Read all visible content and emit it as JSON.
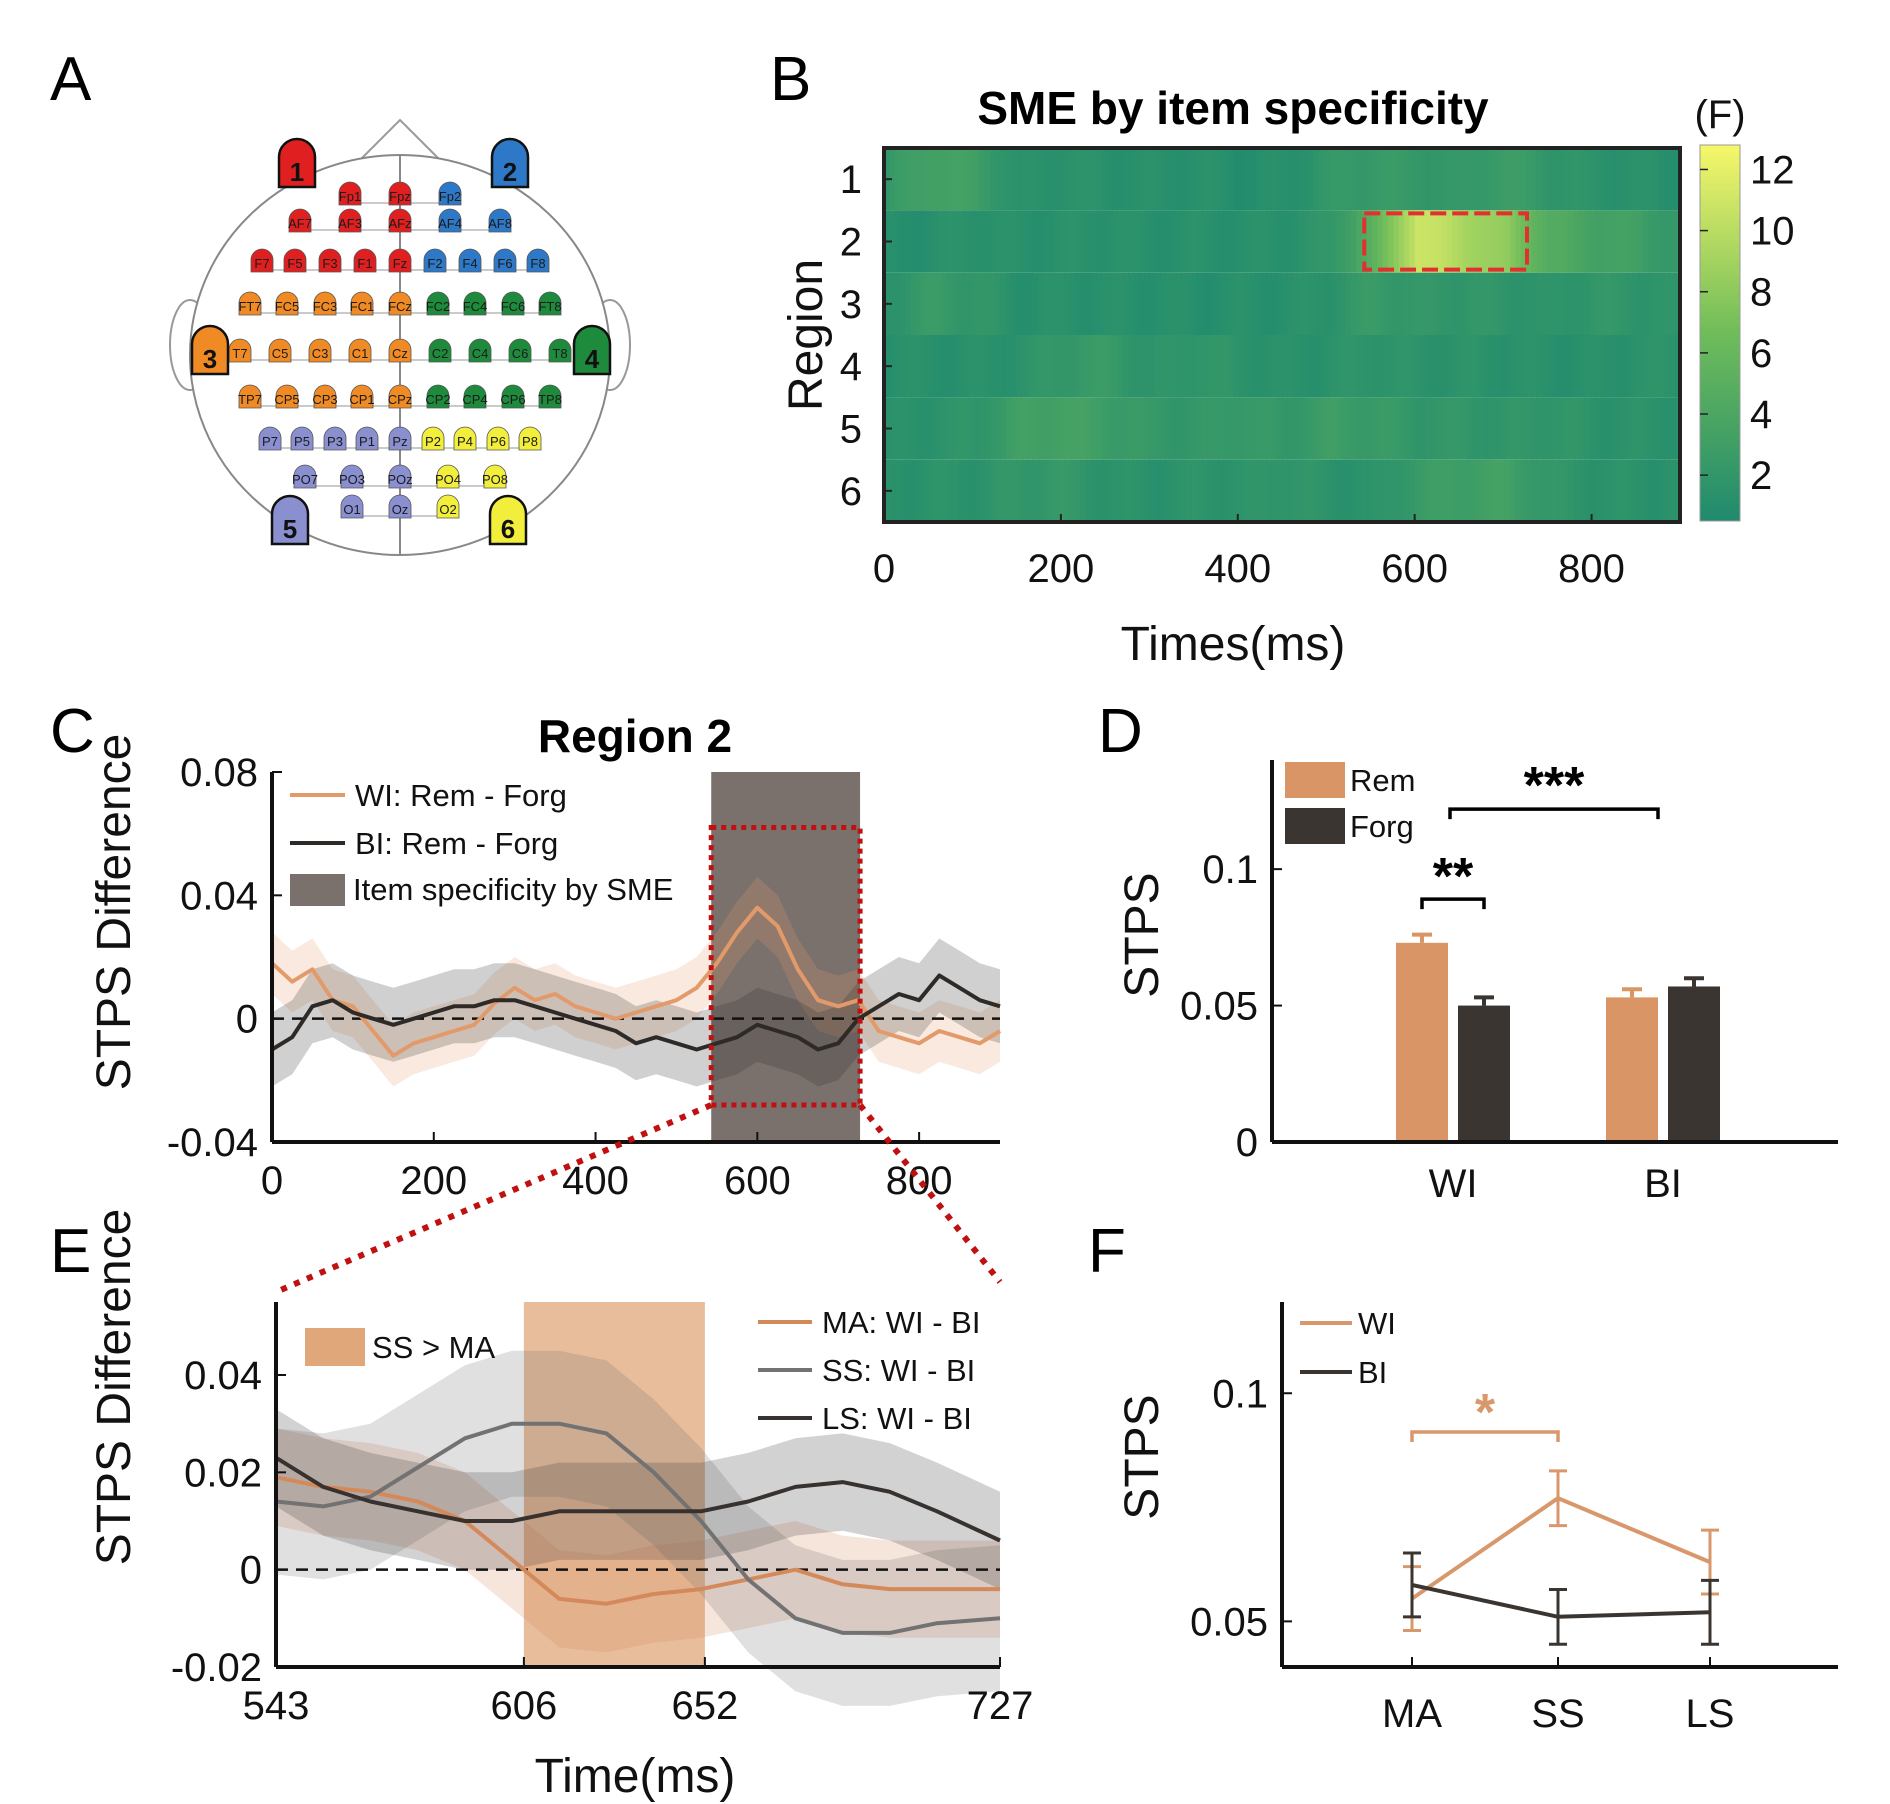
{
  "panels": {
    "A": {
      "label": "A",
      "region_numbers": [
        "1",
        "2",
        "3",
        "4",
        "5",
        "6"
      ],
      "region_colors": {
        "1": "#e02020",
        "2": "#2e78c8",
        "3": "#f08a24",
        "4": "#1e8a3c",
        "5": "#8a8fd0",
        "6": "#f2ee3c"
      },
      "electrodes": [
        {
          "name": "Fp1",
          "region": "1"
        },
        {
          "name": "Fpz",
          "region": "1"
        },
        {
          "name": "Fp2",
          "region": "2"
        },
        {
          "name": "AF7",
          "region": "1"
        },
        {
          "name": "AF3",
          "region": "1"
        },
        {
          "name": "AFz",
          "region": "1"
        },
        {
          "name": "AF4",
          "region": "2"
        },
        {
          "name": "AF8",
          "region": "2"
        },
        {
          "name": "F7",
          "region": "1"
        },
        {
          "name": "F5",
          "region": "1"
        },
        {
          "name": "F3",
          "region": "1"
        },
        {
          "name": "F1",
          "region": "1"
        },
        {
          "name": "Fz",
          "region": "1"
        },
        {
          "name": "F2",
          "region": "2"
        },
        {
          "name": "F4",
          "region": "2"
        },
        {
          "name": "F6",
          "region": "2"
        },
        {
          "name": "F8",
          "region": "2"
        },
        {
          "name": "FT7",
          "region": "3"
        },
        {
          "name": "FC5",
          "region": "3"
        },
        {
          "name": "FC3",
          "region": "3"
        },
        {
          "name": "FC1",
          "region": "3"
        },
        {
          "name": "FCz",
          "region": "3"
        },
        {
          "name": "FC2",
          "region": "4"
        },
        {
          "name": "FC4",
          "region": "4"
        },
        {
          "name": "FC6",
          "region": "4"
        },
        {
          "name": "FT8",
          "region": "4"
        },
        {
          "name": "T7",
          "region": "3"
        },
        {
          "name": "C5",
          "region": "3"
        },
        {
          "name": "C3",
          "region": "3"
        },
        {
          "name": "C1",
          "region": "3"
        },
        {
          "name": "Cz",
          "region": "3"
        },
        {
          "name": "C2",
          "region": "4"
        },
        {
          "name": "C4",
          "region": "4"
        },
        {
          "name": "C6",
          "region": "4"
        },
        {
          "name": "T8",
          "region": "4"
        },
        {
          "name": "TP7",
          "region": "3"
        },
        {
          "name": "CP5",
          "region": "3"
        },
        {
          "name": "CP3",
          "region": "3"
        },
        {
          "name": "CP1",
          "region": "3"
        },
        {
          "name": "CPz",
          "region": "3"
        },
        {
          "name": "CP2",
          "region": "4"
        },
        {
          "name": "CP4",
          "region": "4"
        },
        {
          "name": "CP6",
          "region": "4"
        },
        {
          "name": "TP8",
          "region": "4"
        },
        {
          "name": "P7",
          "region": "5"
        },
        {
          "name": "P5",
          "region": "5"
        },
        {
          "name": "P3",
          "region": "5"
        },
        {
          "name": "P1",
          "region": "5"
        },
        {
          "name": "Pz",
          "region": "5"
        },
        {
          "name": "P2",
          "region": "6"
        },
        {
          "name": "P4",
          "region": "6"
        },
        {
          "name": "P6",
          "region": "6"
        },
        {
          "name": "P8",
          "region": "6"
        },
        {
          "name": "PO7",
          "region": "5"
        },
        {
          "name": "PO3",
          "region": "5"
        },
        {
          "name": "POz",
          "region": "5"
        },
        {
          "name": "PO4",
          "region": "6"
        },
        {
          "name": "PO8",
          "region": "6"
        },
        {
          "name": "O1",
          "region": "5"
        },
        {
          "name": "Oz",
          "region": "5"
        },
        {
          "name": "O2",
          "region": "6"
        }
      ]
    },
    "B": {
      "label": "B"
    },
    "C": {
      "label": "C"
    },
    "D": {
      "label": "D"
    },
    "E": {
      "label": "E"
    },
    "F": {
      "label": "F"
    }
  },
  "chart_data": [
    {
      "panel": "B",
      "type": "heatmap",
      "title": "SME by item specificity",
      "xlabel": "Times(ms)",
      "ylabel": "Region",
      "xlim": [
        0,
        900
      ],
      "xticks": [
        0,
        200,
        400,
        600,
        800
      ],
      "rows": [
        "1",
        "2",
        "3",
        "4",
        "5",
        "6"
      ],
      "colorbar": {
        "label": "(F)",
        "ticks": [
          2,
          4,
          6,
          8,
          10,
          12
        ],
        "range": [
          0.5,
          12.8
        ],
        "colors": [
          "#1f8a6e",
          "#6fbc5a",
          "#f7f76a"
        ]
      },
      "highlight": {
        "region": "2",
        "x_range": [
          543,
          727
        ],
        "color": "#e03030"
      },
      "time_bins_ms": [
        0,
        50,
        100,
        150,
        200,
        250,
        300,
        350,
        400,
        450,
        500,
        550,
        600,
        650,
        700,
        750,
        800,
        850,
        900
      ],
      "f_values": [
        [
          2.0,
          3.5,
          3.0,
          1.2,
          1.5,
          1.3,
          1.2,
          1.3,
          1.0,
          1.1,
          2.0,
          2.5,
          2.2,
          2.0,
          2.8,
          2.0,
          1.5,
          1.3,
          1.2
        ],
        [
          1.0,
          1.2,
          1.5,
          1.2,
          1.3,
          1.4,
          1.2,
          1.3,
          1.2,
          1.3,
          1.8,
          5.0,
          11.0,
          9.5,
          8.0,
          4.5,
          3.5,
          3.0,
          2.0
        ],
        [
          1.5,
          2.5,
          2.0,
          1.2,
          1.3,
          1.2,
          1.2,
          1.1,
          1.2,
          1.2,
          1.5,
          2.5,
          2.0,
          2.0,
          1.8,
          1.5,
          2.0,
          1.8,
          1.5
        ],
        [
          1.2,
          1.3,
          1.2,
          1.5,
          2.2,
          2.5,
          1.5,
          2.0,
          1.6,
          1.2,
          1.5,
          1.8,
          1.5,
          1.5,
          1.4,
          1.3,
          1.2,
          1.5,
          1.6
        ],
        [
          1.2,
          1.5,
          1.8,
          3.0,
          3.5,
          2.8,
          2.2,
          2.0,
          2.5,
          2.0,
          2.8,
          2.5,
          2.0,
          2.0,
          1.8,
          2.0,
          1.5,
          1.5,
          1.4
        ],
        [
          1.3,
          1.5,
          1.5,
          2.0,
          2.2,
          1.5,
          1.4,
          1.6,
          1.5,
          2.0,
          1.5,
          1.4,
          2.5,
          3.0,
          3.2,
          2.0,
          1.5,
          1.4,
          1.3
        ]
      ]
    },
    {
      "panel": "C",
      "type": "line",
      "title": "Region 2",
      "xlabel": "",
      "ylabel": "STPS Difference",
      "xlim": [
        0,
        900
      ],
      "ylim": [
        -0.04,
        0.08
      ],
      "xticks": [
        0,
        200,
        400,
        600,
        800
      ],
      "yticks": [
        "-0.04",
        "0",
        "0.04",
        "0.08"
      ],
      "shaded_region": {
        "label": "Item specificity by SME",
        "x_range": [
          543,
          727
        ],
        "color": "#7a716c"
      },
      "zoom_box": {
        "x_range": [
          543,
          727
        ],
        "y_range": [
          -0.028,
          0.062
        ],
        "color": "#c01010"
      },
      "x": [
        0,
        25,
        50,
        75,
        100,
        125,
        150,
        175,
        200,
        225,
        250,
        275,
        300,
        325,
        350,
        375,
        400,
        425,
        450,
        475,
        500,
        525,
        550,
        575,
        600,
        625,
        650,
        675,
        700,
        725,
        750,
        775,
        800,
        825,
        850,
        875,
        900
      ],
      "series": [
        {
          "name": "WI: Rem - Forg",
          "color": "#e39a6b",
          "values": [
            0.018,
            0.012,
            0.016,
            0.006,
            0.004,
            -0.004,
            -0.012,
            -0.008,
            -0.006,
            -0.004,
            -0.002,
            0.005,
            0.01,
            0.006,
            0.008,
            0.004,
            0.002,
            0.0,
            0.002,
            0.004,
            0.006,
            0.01,
            0.018,
            0.028,
            0.036,
            0.03,
            0.016,
            0.006,
            0.004,
            0.006,
            -0.004,
            -0.006,
            -0.008,
            -0.004,
            -0.006,
            -0.008,
            -0.004
          ],
          "band": 0.01
        },
        {
          "name": "BI:  Rem - Forg",
          "color": "#2e2a27",
          "values": [
            -0.01,
            -0.006,
            0.004,
            0.006,
            0.002,
            0.0,
            -0.002,
            0.0,
            0.002,
            0.004,
            0.004,
            0.006,
            0.006,
            0.004,
            0.002,
            0.0,
            -0.002,
            -0.004,
            -0.008,
            -0.006,
            -0.008,
            -0.01,
            -0.008,
            -0.006,
            -0.002,
            -0.004,
            -0.006,
            -0.01,
            -0.008,
            0.0,
            0.004,
            0.008,
            0.006,
            0.014,
            0.01,
            0.006,
            0.004
          ],
          "band": 0.012
        }
      ],
      "dashed_zero": true
    },
    {
      "panel": "D",
      "type": "bar",
      "xlabel": "",
      "ylabel": "STPS",
      "ylim": [
        0,
        0.14
      ],
      "yticks": [
        "0",
        "0.05",
        "0.1"
      ],
      "categories": [
        "WI",
        "BI"
      ],
      "series": [
        {
          "name": "Rem",
          "color": "#d99566",
          "values": [
            0.073,
            0.053
          ],
          "errors": [
            0.003,
            0.003
          ]
        },
        {
          "name": "Forg",
          "color": "#3b3531",
          "values": [
            0.05,
            0.057
          ],
          "errors": [
            0.003,
            0.003
          ]
        }
      ],
      "annotations": [
        {
          "text": "**",
          "between": "WI Rem vs WI Forg"
        },
        {
          "text": "***",
          "between": "WI vs BI"
        }
      ]
    },
    {
      "panel": "E",
      "type": "line",
      "xlabel": "Time(ms)",
      "ylabel": "STPS Difference",
      "xlim": [
        543,
        727
      ],
      "ylim": [
        -0.02,
        0.055
      ],
      "xticks": [
        "543",
        "606",
        "652",
        "727"
      ],
      "yticks": [
        "-0.02",
        "0",
        "0.02",
        "0.04"
      ],
      "shaded_region": {
        "label": "SS > MA",
        "x_range": [
          606,
          652
        ],
        "color": "#e0a77b"
      },
      "x": [
        543,
        555,
        567,
        579,
        591,
        603,
        615,
        627,
        639,
        651,
        663,
        675,
        687,
        699,
        711,
        727
      ],
      "series": [
        {
          "name": "MA: WI - BI",
          "color": "#d4895a",
          "values": [
            0.019,
            0.017,
            0.016,
            0.014,
            0.01,
            0.002,
            -0.006,
            -0.007,
            -0.005,
            -0.004,
            -0.002,
            0.0,
            -0.003,
            -0.004,
            -0.004,
            -0.004
          ],
          "band": 0.01
        },
        {
          "name": "SS:   WI - BI",
          "color": "#727272",
          "values": [
            0.014,
            0.013,
            0.015,
            0.021,
            0.027,
            0.03,
            0.03,
            0.028,
            0.02,
            0.01,
            -0.002,
            -0.01,
            -0.013,
            -0.013,
            -0.011,
            -0.01
          ],
          "band": 0.015
        },
        {
          "name": "LS:    WI - BI",
          "color": "#373230",
          "values": [
            0.023,
            0.017,
            0.014,
            0.012,
            0.01,
            0.01,
            0.012,
            0.012,
            0.012,
            0.012,
            0.014,
            0.017,
            0.018,
            0.016,
            0.012,
            0.006
          ],
          "band": 0.01
        }
      ],
      "dashed_zero": true
    },
    {
      "panel": "F",
      "type": "line",
      "xlabel": "",
      "ylabel": "STPS",
      "ylim": [
        0.04,
        0.12
      ],
      "yticks": [
        "0.05",
        "0.1"
      ],
      "categories": [
        "MA",
        "SS",
        "LS"
      ],
      "series": [
        {
          "name": "WI",
          "color": "#d9986b",
          "values": [
            0.055,
            0.077,
            0.063
          ],
          "errors": [
            0.007,
            0.006,
            0.007
          ]
        },
        {
          "name": "BI",
          "color": "#3b3531",
          "values": [
            0.058,
            0.051,
            0.052
          ],
          "errors": [
            0.007,
            0.006,
            0.007
          ]
        }
      ],
      "annotations": [
        {
          "text": "*",
          "between": "MA vs SS",
          "color": "#d9986b"
        }
      ]
    }
  ]
}
